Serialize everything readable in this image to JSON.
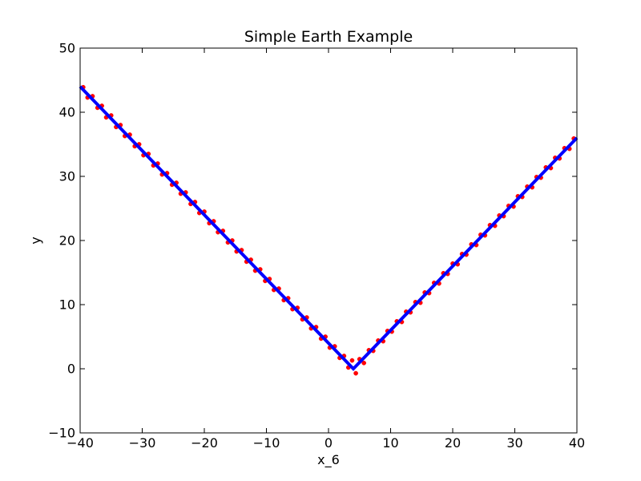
{
  "chart_data": {
    "type": "scatter",
    "title": "Simple Earth Example",
    "xlabel": "x_6",
    "ylabel": "y",
    "xlim": [
      -40,
      40
    ],
    "ylim": [
      -10,
      50
    ],
    "xticks": [
      -40,
      -30,
      -20,
      -10,
      0,
      10,
      20,
      30,
      40
    ],
    "yticks": [
      -10,
      0,
      10,
      20,
      30,
      40,
      50
    ],
    "xtick_labels": [
      "−40",
      "−30",
      "−20",
      "−10",
      "0",
      "10",
      "20",
      "30",
      "40"
    ],
    "ytick_labels": [
      "−10",
      "0",
      "10",
      "20",
      "30",
      "40",
      "50"
    ],
    "grid": false,
    "legend": "none",
    "series": [
      {
        "kind": "points",
        "color": "#ff0000",
        "x": [
          -39.5,
          -38.8,
          -38.0,
          -37.2,
          -36.5,
          -35.8,
          -35.0,
          -34.2,
          -33.5,
          -32.8,
          -32.0,
          -31.2,
          -30.5,
          -29.8,
          -29.0,
          -28.2,
          -27.5,
          -26.8,
          -26.0,
          -25.2,
          -24.5,
          -23.8,
          -23.0,
          -22.2,
          -21.5,
          -20.8,
          -20.0,
          -19.2,
          -18.5,
          -17.8,
          -17.0,
          -16.2,
          -15.5,
          -14.8,
          -14.0,
          -13.2,
          -12.5,
          -11.8,
          -11.0,
          -10.2,
          -9.5,
          -8.8,
          -8.0,
          -7.2,
          -6.5,
          -5.8,
          -5.0,
          -4.2,
          -3.5,
          -2.8,
          -2.0,
          -1.2,
          -0.5,
          0.2,
          1.0,
          1.8,
          2.5,
          3.2,
          3.8,
          4.4,
          5.0,
          5.7,
          6.5,
          7.2,
          8.0,
          8.8,
          9.5,
          10.2,
          11.0,
          11.8,
          12.5,
          13.2,
          14.0,
          14.8,
          15.5,
          16.2,
          17.0,
          17.8,
          18.5,
          19.2,
          20.0,
          20.8,
          21.5,
          22.2,
          23.0,
          23.8,
          24.5,
          25.2,
          26.0,
          26.8,
          27.5,
          28.2,
          29.0,
          29.8,
          30.5,
          31.2,
          32.0,
          32.8,
          33.5,
          34.2,
          35.0,
          35.8,
          36.5,
          37.2,
          38.0,
          38.8,
          39.5
        ],
        "y": [
          43.9,
          42.3,
          42.5,
          40.7,
          41.0,
          39.2,
          39.5,
          37.7,
          38.0,
          36.3,
          36.5,
          34.7,
          35.0,
          33.3,
          33.5,
          31.7,
          32.0,
          30.3,
          30.5,
          28.7,
          29.0,
          27.3,
          27.5,
          25.7,
          26.0,
          24.3,
          24.5,
          22.7,
          23.0,
          21.3,
          21.5,
          19.7,
          20.0,
          18.3,
          18.5,
          16.7,
          17.0,
          15.3,
          15.5,
          13.7,
          14.0,
          12.3,
          12.5,
          10.7,
          11.0,
          9.3,
          9.5,
          7.7,
          8.0,
          6.3,
          6.5,
          4.7,
          5.0,
          3.3,
          3.5,
          1.7,
          2.0,
          0.2,
          1.3,
          -0.7,
          1.5,
          0.9,
          2.9,
          2.8,
          4.4,
          4.3,
          5.9,
          5.8,
          7.4,
          7.3,
          8.9,
          8.8,
          10.4,
          10.3,
          11.9,
          11.8,
          13.4,
          13.3,
          14.9,
          14.8,
          16.4,
          16.3,
          17.9,
          17.8,
          19.4,
          19.3,
          20.9,
          20.8,
          22.4,
          22.3,
          23.9,
          23.8,
          25.4,
          25.3,
          26.9,
          26.8,
          28.4,
          28.3,
          29.9,
          29.8,
          31.4,
          31.3,
          32.9,
          32.8,
          34.4,
          34.3,
          35.9
        ]
      },
      {
        "kind": "line",
        "color": "#0000ff",
        "x": [
          -40,
          4,
          40
        ],
        "y": [
          44,
          0,
          36
        ]
      }
    ]
  }
}
